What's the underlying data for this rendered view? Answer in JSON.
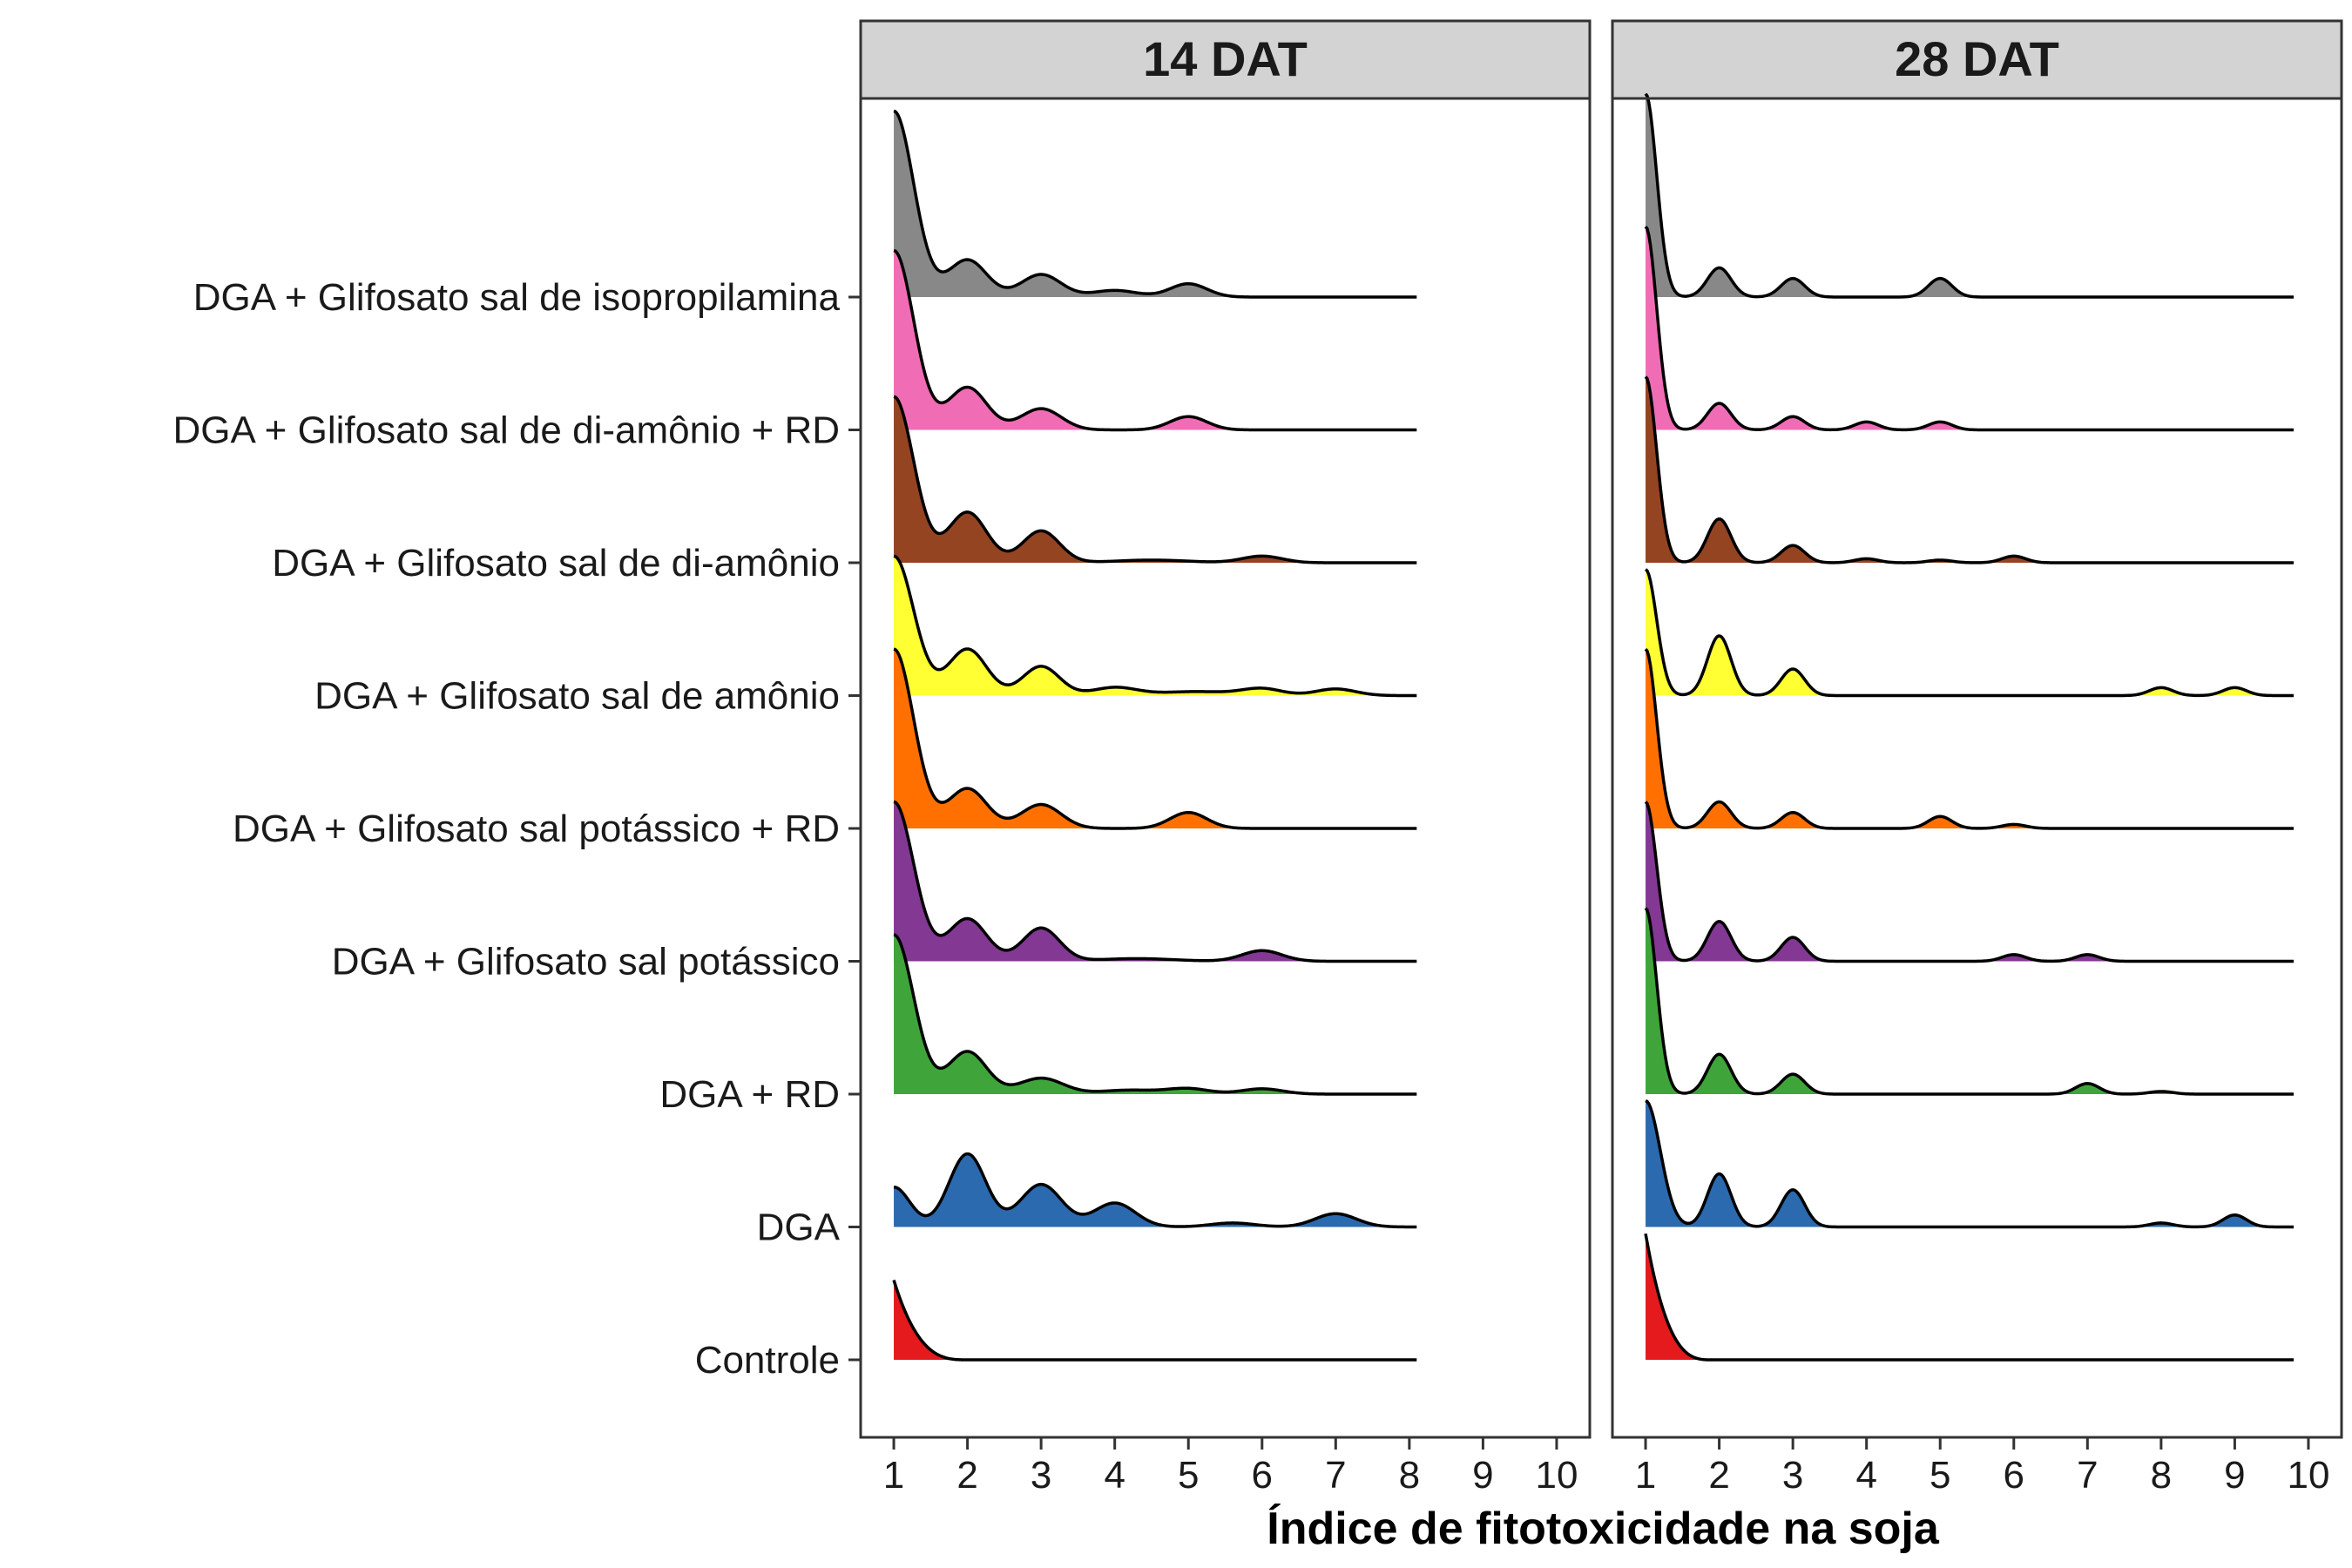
{
  "chart_data": {
    "type": "ridgeline",
    "xlabel": "Índice de fitotoxicidade na soja",
    "x_ticks": [
      1,
      2,
      3,
      4,
      5,
      6,
      7,
      8,
      9,
      10
    ],
    "xlim": [
      0.55,
      10.45
    ],
    "categories": [
      "Controle",
      "DGA",
      "DGA + RD",
      "DGA + Glifosato sal potássico",
      "DGA + Glifosato sal potássico + RD",
      "DGA + Glifosato sal de amônio",
      "DGA + Glifosato sal de di-amônio",
      "DGA + Glifosato sal de di-amônio + RD",
      "DGA + Glifosato sal de isopropilamina"
    ],
    "colors": {
      "Controle": "#e41a1c",
      "DGA": "#2b6aaf",
      "DGA + RD": "#3fa53a",
      "DGA + Glifosato sal potássico": "#833893",
      "DGA + Glifosato sal potássico + RD": "#ff7000",
      "DGA + Glifosato sal de amônio": "#ffff33",
      "DGA + Glifosato sal de di-amônio": "#954422",
      "DGA + Glifosato sal de di-amônio + RD": "#f06db6",
      "DGA + Glifosato sal de isopropilamina": "#888888"
    },
    "panels": [
      {
        "title": "14 DAT",
        "x_max": 8.1,
        "series": [
          {
            "name": "Controle",
            "mode": [
              1,
              2.0
            ],
            "peaks": [
              [
                1,
                0.6,
                0.55
              ]
            ]
          },
          {
            "name": "DGA",
            "peaks": [
              [
                1,
                0.3,
                0.22
              ],
              [
                2,
                0.55,
                0.25
              ],
              [
                3,
                0.32,
                0.28
              ],
              [
                4,
                0.18,
                0.28
              ],
              [
                5.6,
                0.03,
                0.3
              ],
              [
                7,
                0.1,
                0.28
              ]
            ]
          },
          {
            "name": "DGA + RD",
            "peaks": [
              [
                1,
                1.2,
                0.27
              ],
              [
                2,
                0.32,
                0.26
              ],
              [
                3,
                0.12,
                0.3
              ],
              [
                4.2,
                0.03,
                0.4
              ],
              [
                5,
                0.04,
                0.28
              ],
              [
                6,
                0.04,
                0.28
              ]
            ]
          },
          {
            "name": "DGA + Glifosato sal potássico",
            "peaks": [
              [
                1,
                1.2,
                0.27
              ],
              [
                2,
                0.32,
                0.26
              ],
              [
                3,
                0.25,
                0.25
              ],
              [
                4.3,
                0.02,
                0.5
              ],
              [
                6,
                0.08,
                0.27
              ]
            ]
          },
          {
            "name": "DGA + Glifosato sal potássico + RD",
            "peaks": [
              [
                1,
                1.35,
                0.27
              ],
              [
                2,
                0.3,
                0.26
              ],
              [
                3,
                0.18,
                0.27
              ],
              [
                5,
                0.12,
                0.25
              ]
            ]
          },
          {
            "name": "DGA + Glifosato sal de amônio",
            "peaks": [
              [
                1,
                1.05,
                0.27
              ],
              [
                2,
                0.35,
                0.26
              ],
              [
                3,
                0.22,
                0.25
              ],
              [
                4,
                0.06,
                0.3
              ],
              [
                5.1,
                0.03,
                0.5
              ],
              [
                6,
                0.05,
                0.27
              ],
              [
                7,
                0.05,
                0.27
              ]
            ]
          },
          {
            "name": "DGA + Glifosato sal de di-amônio",
            "peaks": [
              [
                1,
                1.25,
                0.27
              ],
              [
                2,
                0.38,
                0.26
              ],
              [
                3,
                0.24,
                0.25
              ],
              [
                4.5,
                0.02,
                0.5
              ],
              [
                6,
                0.05,
                0.27
              ]
            ]
          },
          {
            "name": "DGA + Glifosato sal de di-amônio + RD",
            "peaks": [
              [
                1,
                1.35,
                0.27
              ],
              [
                2,
                0.32,
                0.26
              ],
              [
                3,
                0.16,
                0.27
              ],
              [
                5,
                0.1,
                0.25
              ]
            ]
          },
          {
            "name": "DGA + Glifosato sal de isopropilamina",
            "peaks": [
              [
                1,
                1.4,
                0.27
              ],
              [
                2,
                0.28,
                0.26
              ],
              [
                3,
                0.17,
                0.27
              ],
              [
                4,
                0.05,
                0.3
              ],
              [
                5,
                0.1,
                0.25
              ]
            ]
          }
        ]
      },
      {
        "title": "28 DAT",
        "x_max": 9.8,
        "series": [
          {
            "name": "Controle",
            "mode": [
              1,
              1.9
            ],
            "peaks": [
              [
                1,
                0.95,
                0.27
              ]
            ]
          },
          {
            "name": "DGA",
            "peaks": [
              [
                1,
                0.95,
                0.2
              ],
              [
                2,
                0.4,
                0.16
              ],
              [
                3,
                0.28,
                0.16
              ],
              [
                8,
                0.03,
                0.16
              ],
              [
                9,
                0.09,
                0.16
              ]
            ]
          },
          {
            "name": "DGA + RD",
            "peaks": [
              [
                1,
                1.4,
                0.15
              ],
              [
                2,
                0.3,
                0.16
              ],
              [
                3,
                0.15,
                0.16
              ],
              [
                7,
                0.08,
                0.16
              ],
              [
                8,
                0.02,
                0.16
              ]
            ]
          },
          {
            "name": "DGA + Glifosato sal potássico",
            "peaks": [
              [
                1,
                1.2,
                0.15
              ],
              [
                2,
                0.3,
                0.16
              ],
              [
                3,
                0.18,
                0.16
              ],
              [
                6,
                0.05,
                0.16
              ],
              [
                7,
                0.05,
                0.16
              ]
            ]
          },
          {
            "name": "DGA + Glifosato sal potássico + RD",
            "peaks": [
              [
                1,
                1.35,
                0.15
              ],
              [
                2,
                0.2,
                0.16
              ],
              [
                3,
                0.12,
                0.16
              ],
              [
                5,
                0.09,
                0.16
              ],
              [
                6,
                0.03,
                0.16
              ]
            ]
          },
          {
            "name": "DGA + Glifosato sal de amônio",
            "peaks": [
              [
                1,
                0.95,
                0.15
              ],
              [
                2,
                0.45,
                0.16
              ],
              [
                3,
                0.2,
                0.16
              ],
              [
                8,
                0.06,
                0.16
              ],
              [
                9,
                0.06,
                0.16
              ]
            ]
          },
          {
            "name": "DGA + Glifosato sal de di-amônio",
            "peaks": [
              [
                1,
                1.4,
                0.15
              ],
              [
                2,
                0.33,
                0.16
              ],
              [
                3,
                0.13,
                0.16
              ],
              [
                4,
                0.03,
                0.16
              ],
              [
                5,
                0.02,
                0.16
              ],
              [
                6,
                0.05,
                0.16
              ]
            ]
          },
          {
            "name": "DGA + Glifosato sal de di-amônio + RD",
            "peaks": [
              [
                1,
                1.53,
                0.15
              ],
              [
                2,
                0.2,
                0.16
              ],
              [
                3,
                0.1,
                0.16
              ],
              [
                4,
                0.06,
                0.16
              ],
              [
                5,
                0.06,
                0.16
              ]
            ]
          },
          {
            "name": "DGA + Glifosato sal de isopropilamina",
            "peaks": [
              [
                1,
                1.53,
                0.15
              ],
              [
                2,
                0.22,
                0.16
              ],
              [
                3,
                0.14,
                0.16
              ],
              [
                5,
                0.14,
                0.16
              ]
            ]
          }
        ]
      }
    ]
  }
}
